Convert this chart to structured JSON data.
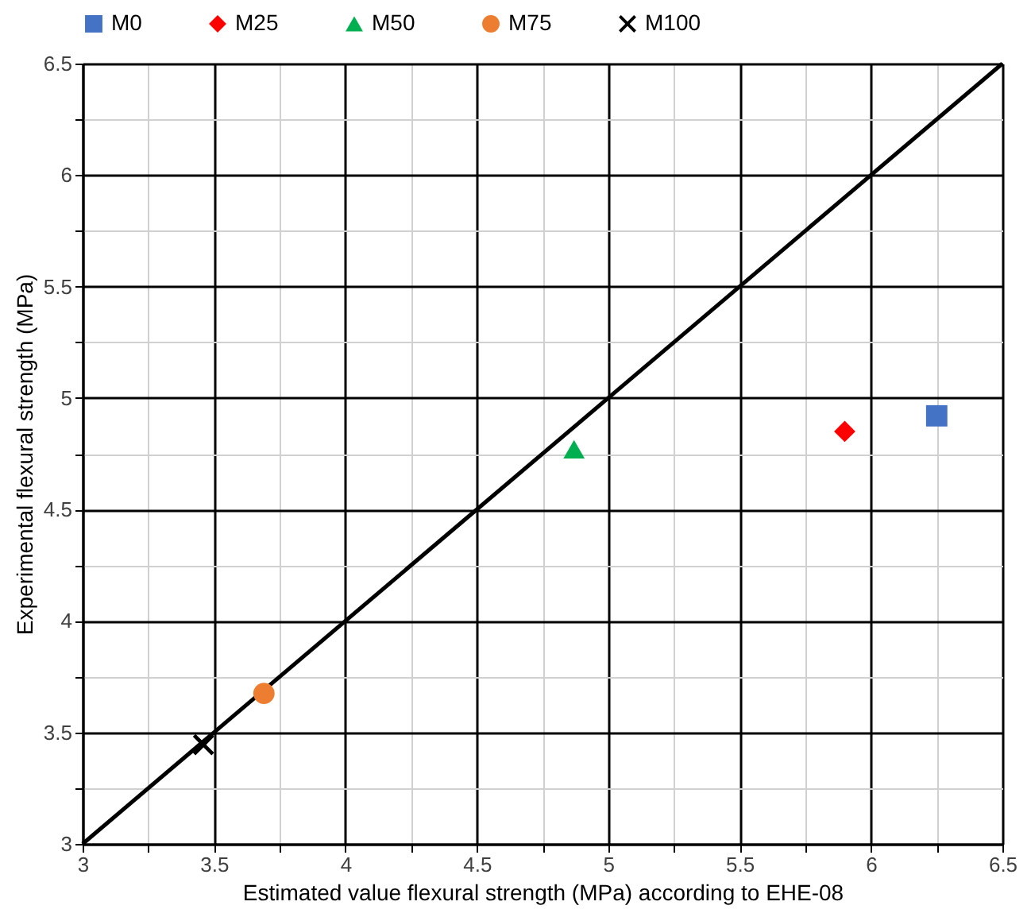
{
  "chart_data": {
    "type": "scatter",
    "xlabel": "Estimated value flexural strength (MPa) according to EHE-08",
    "ylabel": "Experimental flexural strength (MPa)",
    "xlim": [
      3,
      6.5
    ],
    "ylim": [
      3,
      6.5
    ],
    "xticks": [
      3,
      {
        "value": 3.25,
        "label": null
      },
      3.5,
      {
        "value": 3.75,
        "label": null
      },
      4,
      {
        "value": 4.25,
        "label": null
      },
      4.5,
      {
        "value": 4.75,
        "label": null
      },
      5,
      {
        "value": 5.25,
        "label": null
      },
      5.5,
      {
        "value": 5.75,
        "label": null
      },
      6,
      {
        "value": 6.25,
        "label": null
      },
      6.5
    ],
    "yticks": [
      3,
      {
        "value": 3.25,
        "label": null
      },
      3.5,
      {
        "value": 3.75,
        "label": null
      },
      4,
      {
        "value": 4.25,
        "label": null
      },
      4.5,
      {
        "value": 4.75,
        "label": null
      },
      5,
      {
        "value": 5.25,
        "label": null
      },
      5.5,
      {
        "value": 5.75,
        "label": null
      },
      6,
      {
        "value": 6.25,
        "label": null
      },
      6.5
    ],
    "grid": true,
    "legend": "top",
    "series": [
      {
        "name": "M0",
        "color": "#4472c4",
        "marker": "square",
        "x": [
          6.25
        ],
        "values": [
          4.92
        ]
      },
      {
        "name": "M25",
        "color": "#ff0000",
        "marker": "diamond",
        "x": [
          5.9
        ],
        "values": [
          4.85
        ]
      },
      {
        "name": "M50",
        "color": "#00b050",
        "marker": "triangle",
        "x": [
          4.87
        ],
        "values": [
          4.77
        ]
      },
      {
        "name": "M75",
        "color": "#ed7d31",
        "marker": "circle",
        "x": [
          3.69
        ],
        "values": [
          3.675
        ]
      },
      {
        "name": "M100",
        "color": "#000000",
        "marker": "cross",
        "x": [
          3.46
        ],
        "values": [
          3.445
        ]
      },
      {
        "type": "line",
        "color": "#000000",
        "line_style": "solid",
        "x": [
          3,
          6.5
        ],
        "values": [
          3,
          6.5
        ]
      }
    ]
  }
}
